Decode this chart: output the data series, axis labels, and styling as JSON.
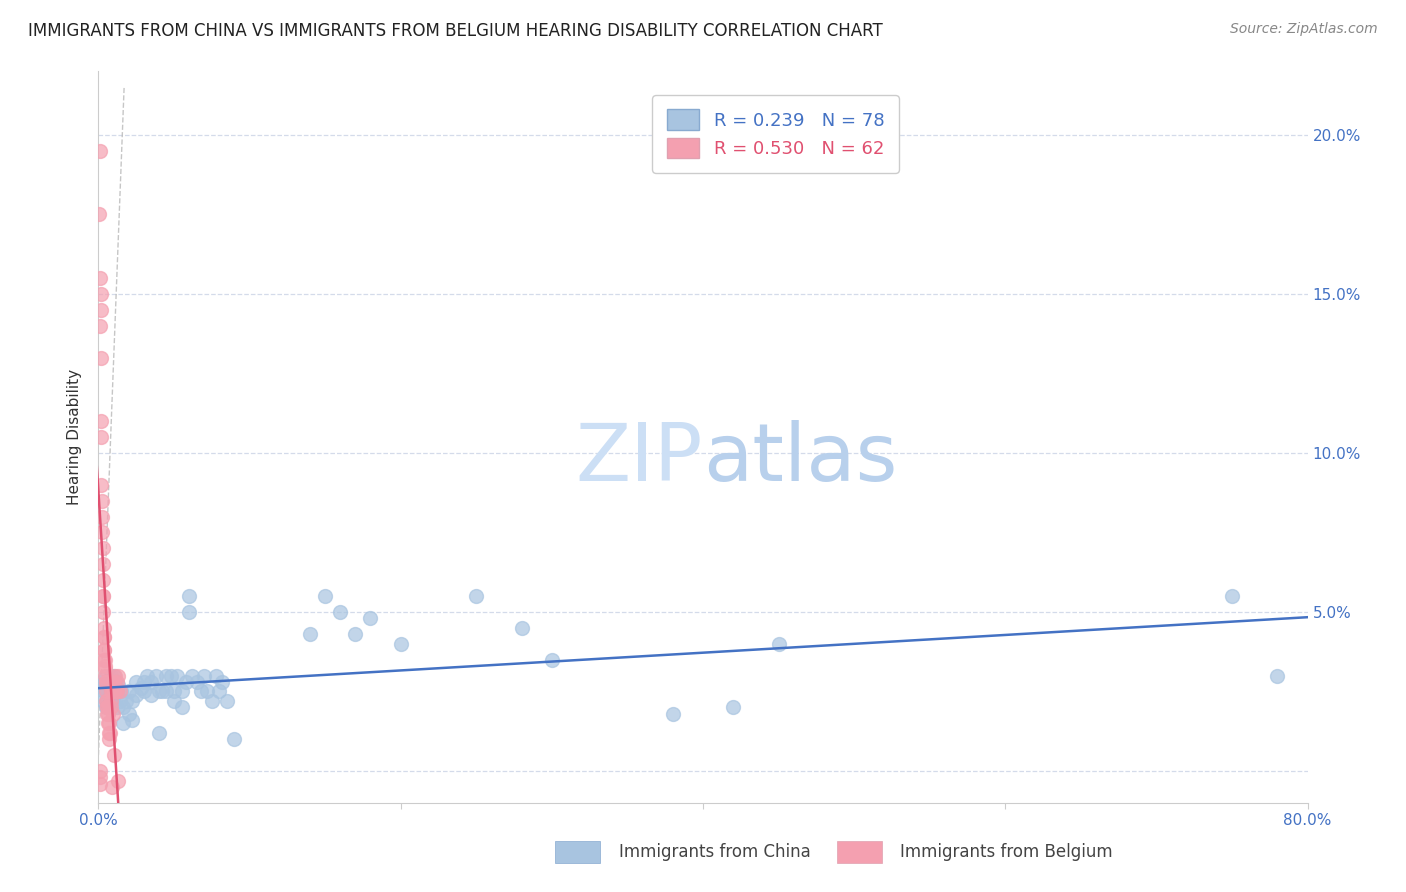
{
  "title": "IMMIGRANTS FROM CHINA VS IMMIGRANTS FROM BELGIUM HEARING DISABILITY CORRELATION CHART",
  "source": "Source: ZipAtlas.com",
  "ylabel": "Hearing Disability",
  "xlim": [
    0.0,
    0.8
  ],
  "ylim": [
    -0.01,
    0.22
  ],
  "right_yticks": [
    0.0,
    0.05,
    0.1,
    0.15,
    0.2
  ],
  "right_yticklabels": [
    "",
    "5.0%",
    "10.0%",
    "15.0%",
    "20.0%"
  ],
  "china_scatter": [
    [
      0.001,
      0.027
    ],
    [
      0.002,
      0.028
    ],
    [
      0.003,
      0.026
    ],
    [
      0.003,
      0.022
    ],
    [
      0.004,
      0.025
    ],
    [
      0.005,
      0.03
    ],
    [
      0.005,
      0.02
    ],
    [
      0.006,
      0.027
    ],
    [
      0.006,
      0.023
    ],
    [
      0.007,
      0.028
    ],
    [
      0.007,
      0.024
    ],
    [
      0.008,
      0.03
    ],
    [
      0.008,
      0.026
    ],
    [
      0.009,
      0.025
    ],
    [
      0.009,
      0.022
    ],
    [
      0.01,
      0.03
    ],
    [
      0.01,
      0.024
    ],
    [
      0.011,
      0.028
    ],
    [
      0.012,
      0.025
    ],
    [
      0.012,
      0.02
    ],
    [
      0.013,
      0.027
    ],
    [
      0.014,
      0.022
    ],
    [
      0.015,
      0.025
    ],
    [
      0.016,
      0.02
    ],
    [
      0.016,
      0.015
    ],
    [
      0.018,
      0.022
    ],
    [
      0.02,
      0.025
    ],
    [
      0.02,
      0.018
    ],
    [
      0.022,
      0.022
    ],
    [
      0.022,
      0.016
    ],
    [
      0.025,
      0.028
    ],
    [
      0.025,
      0.024
    ],
    [
      0.028,
      0.026
    ],
    [
      0.03,
      0.028
    ],
    [
      0.03,
      0.025
    ],
    [
      0.032,
      0.03
    ],
    [
      0.035,
      0.028
    ],
    [
      0.035,
      0.024
    ],
    [
      0.038,
      0.03
    ],
    [
      0.04,
      0.025
    ],
    [
      0.04,
      0.012
    ],
    [
      0.042,
      0.025
    ],
    [
      0.045,
      0.03
    ],
    [
      0.045,
      0.025
    ],
    [
      0.048,
      0.03
    ],
    [
      0.05,
      0.025
    ],
    [
      0.05,
      0.022
    ],
    [
      0.052,
      0.03
    ],
    [
      0.055,
      0.025
    ],
    [
      0.055,
      0.02
    ],
    [
      0.058,
      0.028
    ],
    [
      0.06,
      0.055
    ],
    [
      0.06,
      0.05
    ],
    [
      0.062,
      0.03
    ],
    [
      0.065,
      0.028
    ],
    [
      0.068,
      0.025
    ],
    [
      0.07,
      0.03
    ],
    [
      0.072,
      0.025
    ],
    [
      0.075,
      0.022
    ],
    [
      0.078,
      0.03
    ],
    [
      0.08,
      0.025
    ],
    [
      0.082,
      0.028
    ],
    [
      0.085,
      0.022
    ],
    [
      0.09,
      0.01
    ],
    [
      0.14,
      0.043
    ],
    [
      0.15,
      0.055
    ],
    [
      0.16,
      0.05
    ],
    [
      0.17,
      0.043
    ],
    [
      0.18,
      0.048
    ],
    [
      0.2,
      0.04
    ],
    [
      0.25,
      0.055
    ],
    [
      0.28,
      0.045
    ],
    [
      0.3,
      0.035
    ],
    [
      0.38,
      0.018
    ],
    [
      0.42,
      0.02
    ],
    [
      0.45,
      0.04
    ],
    [
      0.75,
      0.055
    ],
    [
      0.78,
      0.03
    ]
  ],
  "belgium_scatter": [
    [
      0.0005,
      0.175
    ],
    [
      0.0008,
      0.155
    ],
    [
      0.001,
      0.14
    ],
    [
      0.0012,
      0.195
    ],
    [
      0.0014,
      0.13
    ],
    [
      0.0015,
      0.15
    ],
    [
      0.0016,
      0.145
    ],
    [
      0.0018,
      0.11
    ],
    [
      0.002,
      0.105
    ],
    [
      0.002,
      0.09
    ],
    [
      0.0022,
      0.08
    ],
    [
      0.0025,
      0.085
    ],
    [
      0.0025,
      0.075
    ],
    [
      0.0028,
      0.07
    ],
    [
      0.0028,
      0.06
    ],
    [
      0.003,
      0.065
    ],
    [
      0.003,
      0.055
    ],
    [
      0.0032,
      0.055
    ],
    [
      0.0032,
      0.05
    ],
    [
      0.0035,
      0.045
    ],
    [
      0.0035,
      0.042
    ],
    [
      0.0038,
      0.042
    ],
    [
      0.0038,
      0.038
    ],
    [
      0.004,
      0.038
    ],
    [
      0.004,
      0.035
    ],
    [
      0.0042,
      0.035
    ],
    [
      0.0042,
      0.032
    ],
    [
      0.0045,
      0.033
    ],
    [
      0.0045,
      0.03
    ],
    [
      0.0048,
      0.028
    ],
    [
      0.005,
      0.025
    ],
    [
      0.005,
      0.022
    ],
    [
      0.0052,
      0.028
    ],
    [
      0.0055,
      0.022
    ],
    [
      0.0055,
      0.02
    ],
    [
      0.0058,
      0.018
    ],
    [
      0.006,
      0.02
    ],
    [
      0.0062,
      0.018
    ],
    [
      0.0065,
      0.015
    ],
    [
      0.0068,
      0.015
    ],
    [
      0.007,
      0.012
    ],
    [
      0.0072,
      0.01
    ],
    [
      0.0075,
      0.012
    ],
    [
      0.008,
      0.025
    ],
    [
      0.0082,
      0.022
    ],
    [
      0.0085,
      0.02
    ],
    [
      0.009,
      0.025
    ],
    [
      0.0095,
      0.018
    ],
    [
      0.01,
      0.028
    ],
    [
      0.0105,
      0.025
    ],
    [
      0.011,
      0.03
    ],
    [
      0.0115,
      0.025
    ],
    [
      0.012,
      0.028
    ],
    [
      0.0125,
      0.025
    ],
    [
      0.013,
      0.03
    ],
    [
      0.014,
      0.025
    ],
    [
      0.0008,
      -0.002
    ],
    [
      0.001,
      0.0
    ],
    [
      0.0012,
      -0.004
    ],
    [
      0.009,
      -0.005
    ],
    [
      0.01,
      0.005
    ],
    [
      0.013,
      -0.003
    ]
  ],
  "china_line_color": "#4472c4",
  "belgium_line_color": "#e05070",
  "china_scatter_color": "#a8c4e0",
  "belgium_scatter_color": "#f4a0b0",
  "ref_line_color": "#b8b8b8",
  "background_color": "#ffffff",
  "grid_color": "#d0d8e8",
  "title_fontsize": 12,
  "axis_label_fontsize": 11,
  "tick_fontsize": 11,
  "watermark_zip_color": "#ccdff5",
  "watermark_atlas_color": "#b8d0ec"
}
